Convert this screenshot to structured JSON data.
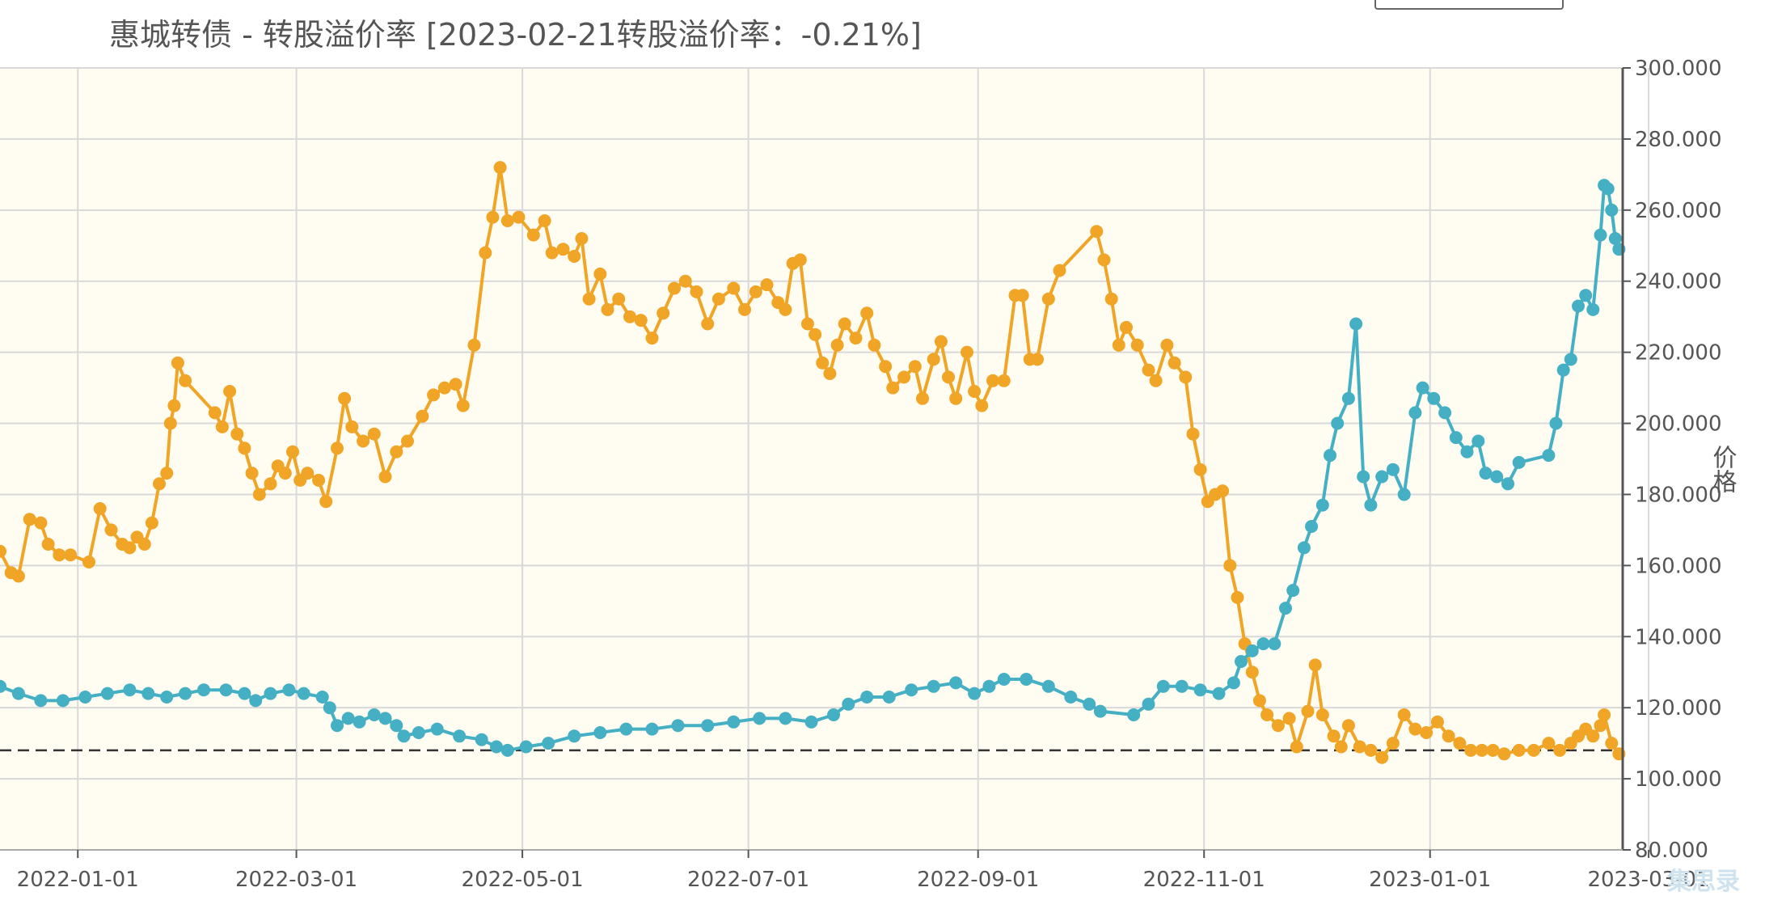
{
  "chart_title": "惠城转债 - 转股溢价率 [2023-02-21转股溢价率：-0.21%]",
  "watermark": "集思录",
  "chart_data": {
    "type": "line",
    "title": "惠城转债 - 转股溢价率 [2023-02-21转股溢价率：-0.21%]",
    "ylabel": "价格",
    "ylim": [
      80,
      300
    ],
    "y_ticks": [
      "80.000",
      "100.000",
      "120.000",
      "140.000",
      "160.000",
      "180.000",
      "200.000",
      "220.000",
      "240.000",
      "260.000",
      "280.000",
      "300.000"
    ],
    "x_range": [
      "2021-12-11",
      "2023-02-22"
    ],
    "x_ticks": [
      "2022-01-01",
      "2022-03-01",
      "2022-05-01",
      "2022-07-01",
      "2022-09-01",
      "2022-11-01",
      "2023-01-01",
      "2023-03-01"
    ],
    "reference_line": 108,
    "plot_background": "#fffcf2",
    "grid": true,
    "series": [
      {
        "color": "#f0a526",
        "points": [
          [
            "2021-12-11",
            164
          ],
          [
            "2021-12-14",
            158
          ],
          [
            "2021-12-16",
            157
          ],
          [
            "2021-12-19",
            173
          ],
          [
            "2021-12-22",
            172
          ],
          [
            "2021-12-24",
            166
          ],
          [
            "2021-12-27",
            163
          ],
          [
            "2021-12-30",
            163
          ],
          [
            "2022-01-04",
            161
          ],
          [
            "2022-01-07",
            176
          ],
          [
            "2022-01-10",
            170
          ],
          [
            "2022-01-13",
            166
          ],
          [
            "2022-01-15",
            165
          ],
          [
            "2022-01-17",
            168
          ],
          [
            "2022-01-19",
            166
          ],
          [
            "2022-01-21",
            172
          ],
          [
            "2022-01-23",
            183
          ],
          [
            "2022-01-25",
            186
          ],
          [
            "2022-01-26",
            200
          ],
          [
            "2022-01-27",
            205
          ],
          [
            "2022-01-28",
            217
          ],
          [
            "2022-01-30",
            212
          ],
          [
            "2022-02-07",
            203
          ],
          [
            "2022-02-09",
            199
          ],
          [
            "2022-02-11",
            209
          ],
          [
            "2022-02-13",
            197
          ],
          [
            "2022-02-15",
            193
          ],
          [
            "2022-02-17",
            186
          ],
          [
            "2022-02-19",
            180
          ],
          [
            "2022-02-22",
            183
          ],
          [
            "2022-02-24",
            188
          ],
          [
            "2022-02-26",
            186
          ],
          [
            "2022-02-28",
            192
          ],
          [
            "2022-03-02",
            184
          ],
          [
            "2022-03-04",
            186
          ],
          [
            "2022-03-07",
            184
          ],
          [
            "2022-03-09",
            178
          ],
          [
            "2022-03-12",
            193
          ],
          [
            "2022-03-14",
            207
          ],
          [
            "2022-03-16",
            199
          ],
          [
            "2022-03-19",
            195
          ],
          [
            "2022-03-22",
            197
          ],
          [
            "2022-03-25",
            185
          ],
          [
            "2022-03-28",
            192
          ],
          [
            "2022-03-31",
            195
          ],
          [
            "2022-04-04",
            202
          ],
          [
            "2022-04-07",
            208
          ],
          [
            "2022-04-10",
            210
          ],
          [
            "2022-04-13",
            211
          ],
          [
            "2022-04-15",
            205
          ],
          [
            "2022-04-18",
            222
          ],
          [
            "2022-04-21",
            248
          ],
          [
            "2022-04-23",
            258
          ],
          [
            "2022-04-25",
            272
          ],
          [
            "2022-04-27",
            257
          ],
          [
            "2022-04-30",
            258
          ],
          [
            "2022-05-04",
            253
          ],
          [
            "2022-05-07",
            257
          ],
          [
            "2022-05-09",
            248
          ],
          [
            "2022-05-12",
            249
          ],
          [
            "2022-05-15",
            247
          ],
          [
            "2022-05-17",
            252
          ],
          [
            "2022-05-19",
            235
          ],
          [
            "2022-05-22",
            242
          ],
          [
            "2022-05-24",
            232
          ],
          [
            "2022-05-27",
            235
          ],
          [
            "2022-05-30",
            230
          ],
          [
            "2022-06-02",
            229
          ],
          [
            "2022-06-05",
            224
          ],
          [
            "2022-06-08",
            231
          ],
          [
            "2022-06-11",
            238
          ],
          [
            "2022-06-14",
            240
          ],
          [
            "2022-06-17",
            237
          ],
          [
            "2022-06-20",
            228
          ],
          [
            "2022-06-23",
            235
          ],
          [
            "2022-06-27",
            238
          ],
          [
            "2022-06-30",
            232
          ],
          [
            "2022-07-03",
            237
          ],
          [
            "2022-07-06",
            239
          ],
          [
            "2022-07-09",
            234
          ],
          [
            "2022-07-11",
            232
          ],
          [
            "2022-07-13",
            245
          ],
          [
            "2022-07-15",
            246
          ],
          [
            "2022-07-17",
            228
          ],
          [
            "2022-07-19",
            225
          ],
          [
            "2022-07-21",
            217
          ],
          [
            "2022-07-23",
            214
          ],
          [
            "2022-07-25",
            222
          ],
          [
            "2022-07-27",
            228
          ],
          [
            "2022-07-30",
            224
          ],
          [
            "2022-08-02",
            231
          ],
          [
            "2022-08-04",
            222
          ],
          [
            "2022-08-07",
            216
          ],
          [
            "2022-08-09",
            210
          ],
          [
            "2022-08-12",
            213
          ],
          [
            "2022-08-15",
            216
          ],
          [
            "2022-08-17",
            207
          ],
          [
            "2022-08-20",
            218
          ],
          [
            "2022-08-22",
            223
          ],
          [
            "2022-08-24",
            213
          ],
          [
            "2022-08-26",
            207
          ],
          [
            "2022-08-29",
            220
          ],
          [
            "2022-08-31",
            209
          ],
          [
            "2022-09-02",
            205
          ],
          [
            "2022-09-05",
            212
          ],
          [
            "2022-09-08",
            212
          ],
          [
            "2022-09-11",
            236
          ],
          [
            "2022-09-13",
            236
          ],
          [
            "2022-09-15",
            218
          ],
          [
            "2022-09-17",
            218
          ],
          [
            "2022-09-20",
            235
          ],
          [
            "2022-09-23",
            243
          ],
          [
            "2022-10-03",
            254
          ],
          [
            "2022-10-05",
            246
          ],
          [
            "2022-10-07",
            235
          ],
          [
            "2022-10-09",
            222
          ],
          [
            "2022-10-11",
            227
          ],
          [
            "2022-10-14",
            222
          ],
          [
            "2022-10-17",
            215
          ],
          [
            "2022-10-19",
            212
          ],
          [
            "2022-10-22",
            222
          ],
          [
            "2022-10-24",
            217
          ],
          [
            "2022-10-27",
            213
          ],
          [
            "2022-10-29",
            197
          ],
          [
            "2022-10-31",
            187
          ],
          [
            "2022-11-02",
            178
          ],
          [
            "2022-11-04",
            180
          ],
          [
            "2022-11-06",
            181
          ],
          [
            "2022-11-08",
            160
          ],
          [
            "2022-11-10",
            151
          ],
          [
            "2022-11-12",
            138
          ],
          [
            "2022-11-14",
            130
          ],
          [
            "2022-11-16",
            122
          ],
          [
            "2022-11-18",
            118
          ],
          [
            "2022-11-21",
            115
          ],
          [
            "2022-11-24",
            117
          ],
          [
            "2022-11-26",
            109
          ],
          [
            "2022-11-29",
            119
          ],
          [
            "2022-12-01",
            132
          ],
          [
            "2022-12-03",
            118
          ],
          [
            "2022-12-06",
            112
          ],
          [
            "2022-12-08",
            109
          ],
          [
            "2022-12-10",
            115
          ],
          [
            "2022-12-13",
            109
          ],
          [
            "2022-12-16",
            108
          ],
          [
            "2022-12-19",
            106
          ],
          [
            "2022-12-22",
            110
          ],
          [
            "2022-12-25",
            118
          ],
          [
            "2022-12-28",
            114
          ],
          [
            "2022-12-31",
            113
          ],
          [
            "2023-01-03",
            116
          ],
          [
            "2023-01-06",
            112
          ],
          [
            "2023-01-09",
            110
          ],
          [
            "2023-01-12",
            108
          ],
          [
            "2023-01-15",
            108
          ],
          [
            "2023-01-18",
            108
          ],
          [
            "2023-01-21",
            107
          ],
          [
            "2023-01-25",
            108
          ],
          [
            "2023-01-29",
            108
          ],
          [
            "2023-02-02",
            110
          ],
          [
            "2023-02-05",
            108
          ],
          [
            "2023-02-08",
            110
          ],
          [
            "2023-02-10",
            112
          ],
          [
            "2023-02-12",
            114
          ],
          [
            "2023-02-14",
            112
          ],
          [
            "2023-02-16",
            115
          ],
          [
            "2023-02-17",
            118
          ],
          [
            "2023-02-19",
            110
          ],
          [
            "2023-02-21",
            107
          ]
        ]
      },
      {
        "color": "#45afc4",
        "points": [
          [
            "2021-12-11",
            126
          ],
          [
            "2021-12-16",
            124
          ],
          [
            "2021-12-22",
            122
          ],
          [
            "2021-12-28",
            122
          ],
          [
            "2022-01-03",
            123
          ],
          [
            "2022-01-09",
            124
          ],
          [
            "2022-01-15",
            125
          ],
          [
            "2022-01-20",
            124
          ],
          [
            "2022-01-25",
            123
          ],
          [
            "2022-01-30",
            124
          ],
          [
            "2022-02-04",
            125
          ],
          [
            "2022-02-10",
            125
          ],
          [
            "2022-02-15",
            124
          ],
          [
            "2022-02-18",
            122
          ],
          [
            "2022-02-22",
            124
          ],
          [
            "2022-02-27",
            125
          ],
          [
            "2022-03-03",
            124
          ],
          [
            "2022-03-08",
            123
          ],
          [
            "2022-03-10",
            120
          ],
          [
            "2022-03-12",
            115
          ],
          [
            "2022-03-15",
            117
          ],
          [
            "2022-03-18",
            116
          ],
          [
            "2022-03-22",
            118
          ],
          [
            "2022-03-25",
            117
          ],
          [
            "2022-03-28",
            115
          ],
          [
            "2022-03-30",
            112
          ],
          [
            "2022-04-03",
            113
          ],
          [
            "2022-04-08",
            114
          ],
          [
            "2022-04-14",
            112
          ],
          [
            "2022-04-20",
            111
          ],
          [
            "2022-04-24",
            109
          ],
          [
            "2022-04-27",
            108
          ],
          [
            "2022-05-02",
            109
          ],
          [
            "2022-05-08",
            110
          ],
          [
            "2022-05-15",
            112
          ],
          [
            "2022-05-22",
            113
          ],
          [
            "2022-05-29",
            114
          ],
          [
            "2022-06-05",
            114
          ],
          [
            "2022-06-12",
            115
          ],
          [
            "2022-06-20",
            115
          ],
          [
            "2022-06-27",
            116
          ],
          [
            "2022-07-04",
            117
          ],
          [
            "2022-07-11",
            117
          ],
          [
            "2022-07-18",
            116
          ],
          [
            "2022-07-24",
            118
          ],
          [
            "2022-07-28",
            121
          ],
          [
            "2022-08-02",
            123
          ],
          [
            "2022-08-08",
            123
          ],
          [
            "2022-08-14",
            125
          ],
          [
            "2022-08-20",
            126
          ],
          [
            "2022-08-26",
            127
          ],
          [
            "2022-08-31",
            124
          ],
          [
            "2022-09-04",
            126
          ],
          [
            "2022-09-08",
            128
          ],
          [
            "2022-09-14",
            128
          ],
          [
            "2022-09-20",
            126
          ],
          [
            "2022-09-26",
            123
          ],
          [
            "2022-10-01",
            121
          ],
          [
            "2022-10-04",
            119
          ],
          [
            "2022-10-13",
            118
          ],
          [
            "2022-10-17",
            121
          ],
          [
            "2022-10-21",
            126
          ],
          [
            "2022-10-26",
            126
          ],
          [
            "2022-10-31",
            125
          ],
          [
            "2022-11-05",
            124
          ],
          [
            "2022-11-09",
            127
          ],
          [
            "2022-11-11",
            133
          ],
          [
            "2022-11-14",
            136
          ],
          [
            "2022-11-17",
            138
          ],
          [
            "2022-11-20",
            138
          ],
          [
            "2022-11-23",
            148
          ],
          [
            "2022-11-25",
            153
          ],
          [
            "2022-11-28",
            165
          ],
          [
            "2022-11-30",
            171
          ],
          [
            "2022-12-03",
            177
          ],
          [
            "2022-12-05",
            191
          ],
          [
            "2022-12-07",
            200
          ],
          [
            "2022-12-10",
            207
          ],
          [
            "2022-12-12",
            228
          ],
          [
            "2022-12-14",
            185
          ],
          [
            "2022-12-16",
            177
          ],
          [
            "2022-12-19",
            185
          ],
          [
            "2022-12-22",
            187
          ],
          [
            "2022-12-25",
            180
          ],
          [
            "2022-12-28",
            203
          ],
          [
            "2022-12-30",
            210
          ],
          [
            "2023-01-02",
            207
          ],
          [
            "2023-01-05",
            203
          ],
          [
            "2023-01-08",
            196
          ],
          [
            "2023-01-11",
            192
          ],
          [
            "2023-01-14",
            195
          ],
          [
            "2023-01-16",
            186
          ],
          [
            "2023-01-19",
            185
          ],
          [
            "2023-01-22",
            183
          ],
          [
            "2023-01-25",
            189
          ],
          [
            "2023-02-02",
            191
          ],
          [
            "2023-02-04",
            200
          ],
          [
            "2023-02-06",
            215
          ],
          [
            "2023-02-08",
            218
          ],
          [
            "2023-02-10",
            233
          ],
          [
            "2023-02-12",
            236
          ],
          [
            "2023-02-14",
            232
          ],
          [
            "2023-02-16",
            253
          ],
          [
            "2023-02-17",
            267
          ],
          [
            "2023-02-18",
            266
          ],
          [
            "2023-02-19",
            260
          ],
          [
            "2023-02-20",
            252
          ],
          [
            "2023-02-21",
            249
          ]
        ]
      }
    ]
  }
}
